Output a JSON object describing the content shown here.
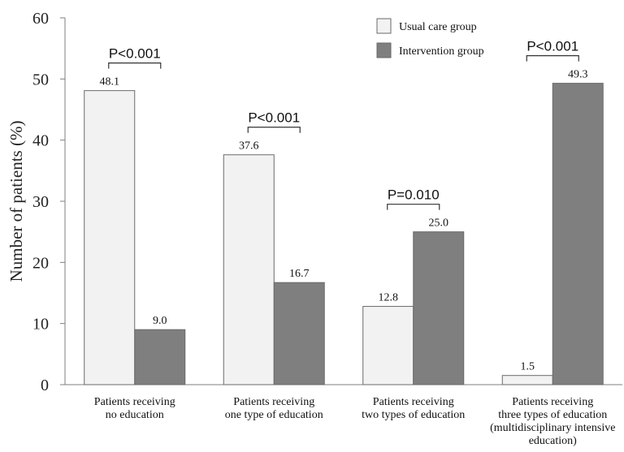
{
  "chart_data": {
    "type": "bar",
    "ylabel": "Number of patients (%)",
    "ylim": [
      0,
      60
    ],
    "yticks": [
      "0",
      "10",
      "20",
      "30",
      "40",
      "50",
      "60"
    ],
    "categories": [
      [
        "Patients receiving",
        "no education"
      ],
      [
        "Patients receiving",
        "one type of education"
      ],
      [
        "Patients receiving",
        "two types of education"
      ],
      [
        "Patients receiving",
        "three types of education",
        "(multidisciplinary intensive",
        "education)"
      ]
    ],
    "series": [
      {
        "name": "Usual care group",
        "color": "#f2f2f2",
        "values": [
          48.1,
          37.6,
          12.8,
          1.5
        ],
        "labels": [
          "48.1",
          "37.6",
          "12.8",
          "1.5"
        ]
      },
      {
        "name": "Intervention group",
        "color": "#7f7f7f",
        "values": [
          9.0,
          16.7,
          25.0,
          49.3
        ],
        "labels": [
          "9.0",
          "16.7",
          "25.0",
          "49.3"
        ]
      }
    ],
    "annotations": [
      "P<0.001",
      "P<0.001",
      "P=0.010",
      "P<0.001"
    ],
    "legend": {
      "position": "top-right"
    }
  }
}
